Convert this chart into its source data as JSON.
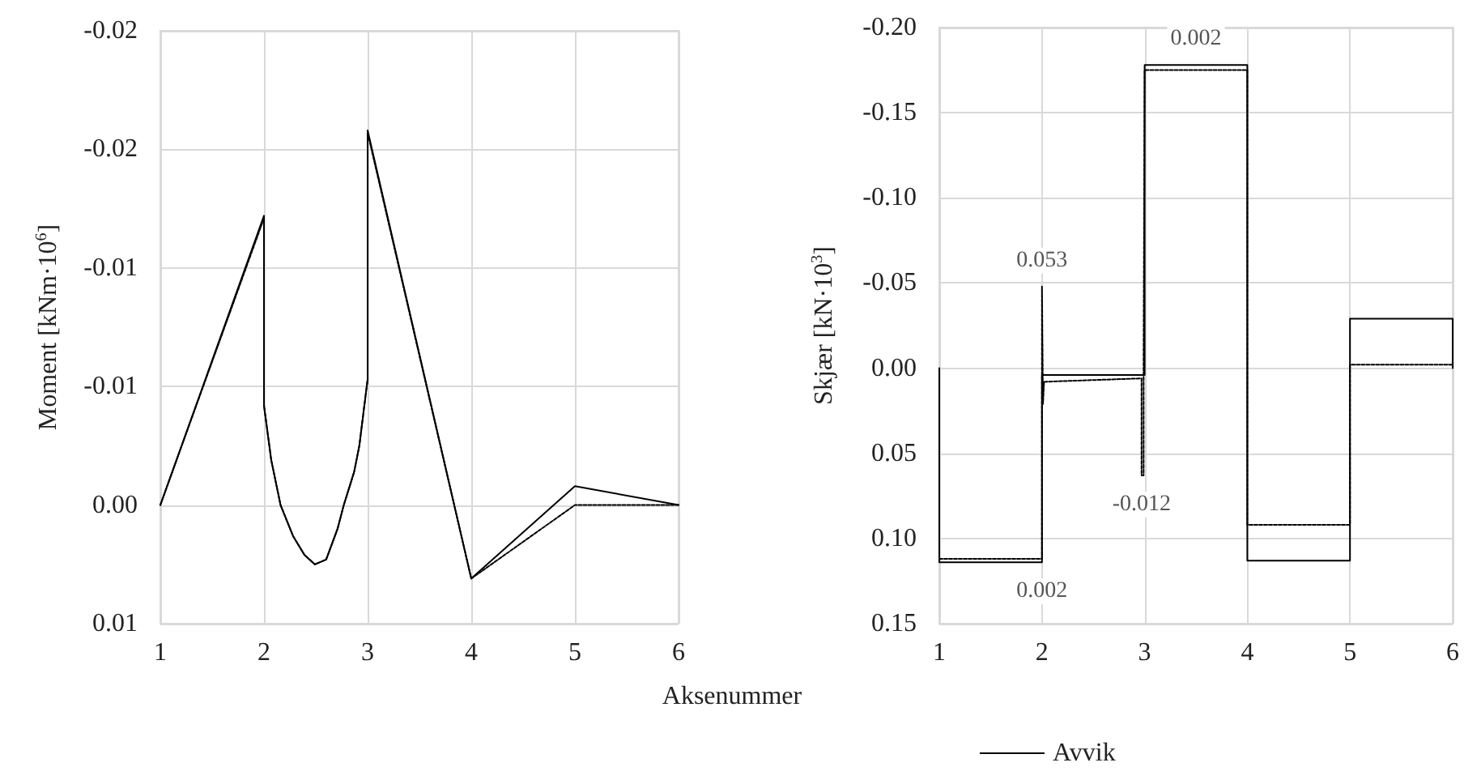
{
  "chart_data": [
    {
      "type": "line",
      "xlabel": "Aksenummer",
      "ylabel": "Moment [kNm·10$^{6}$]",
      "xlim": [
        1,
        6
      ],
      "xticks": [
        1,
        2,
        3,
        4,
        5,
        6
      ],
      "ylim": [
        0.005,
        -0.02
      ],
      "yticks": [
        {
          "value": 0.005,
          "label": "0.01"
        },
        {
          "value": 0,
          "label": "0.00"
        },
        {
          "value": -0.005,
          "label": "-0.01"
        },
        {
          "value": -0.01,
          "label": "-0.01"
        },
        {
          "value": -0.015,
          "label": "-0.02"
        },
        {
          "value": -0.02,
          "label": "-0.02"
        }
      ],
      "grid": true,
      "legend": false,
      "marker": "none",
      "series": [
        {
          "color": "#000000",
          "line_style": "solid",
          "x": [
            1,
            2,
            2,
            2.07,
            2.16,
            2.28,
            2.39,
            2.49,
            2.6,
            2.71,
            2.77,
            2.87,
            2.92,
            3,
            3,
            4,
            5,
            6
          ],
          "values": [
            0,
            -0.0122,
            -0.0042,
            -0.0019,
            0,
            0.0013,
            0.0021,
            0.0025,
            0.0023,
            0.001,
            0,
            -0.0014,
            -0.0025,
            -0.0053,
            -0.0158,
            0.0031,
            -0.0008,
            0
          ]
        },
        {
          "color": "#000000",
          "line_style": "dashed",
          "x": [
            1,
            2,
            2,
            2.07,
            2.16,
            2.28,
            2.39,
            2.49,
            2.6,
            2.71,
            2.77,
            2.87,
            2.92,
            3,
            3,
            4,
            5,
            6
          ],
          "values": [
            0,
            -0.0121,
            -0.0042,
            -0.0019,
            0,
            0.0013,
            0.0021,
            0.0025,
            0.0023,
            0.001,
            0,
            -0.0014,
            -0.0025,
            -0.0053,
            -0.0157,
            0.0031,
            0,
            0
          ]
        }
      ]
    },
    {
      "type": "line",
      "ylabel": "Skjær [kN·10$^{3}$]",
      "xlim": [
        1,
        6
      ],
      "xticks": [
        1,
        2,
        3,
        4,
        5,
        6
      ],
      "ylim": [
        0.15,
        -0.2
      ],
      "yticks": [
        {
          "value": 0.15,
          "label": "0.15"
        },
        {
          "value": 0.1,
          "label": "0.10"
        },
        {
          "value": 0.05,
          "label": "0.05"
        },
        {
          "value": 0,
          "label": "0.00"
        },
        {
          "value": -0.05,
          "label": "-0.05"
        },
        {
          "value": -0.1,
          "label": "-0.10"
        },
        {
          "value": -0.15,
          "label": "-0.15"
        },
        {
          "value": -0.2,
          "label": "-0.20"
        }
      ],
      "grid": true,
      "legend": "bottom",
      "marker": "none",
      "series": [
        {
          "color": "#000000",
          "line_style": "solid",
          "x": [
            1,
            1,
            2,
            2,
            3,
            3,
            4,
            4,
            5,
            5,
            6,
            6
          ],
          "values": [
            0,
            0.114,
            0.114,
            0.004,
            0.004,
            -0.178,
            -0.178,
            0.113,
            0.113,
            -0.029,
            -0.029,
            0
          ]
        },
        {
          "color": "#000000",
          "line_style": "dashed",
          "x": [
            1,
            2,
            2,
            2.01,
            2.02,
            2.49,
            2.97,
            2.97,
            2.99,
            2.99,
            3,
            4,
            4,
            5,
            5,
            6
          ],
          "values": [
            0.112,
            0.112,
            -0.048,
            0.021,
            0.008,
            0.007,
            0.006,
            0.063,
            0.063,
            -0.009,
            -0.175,
            -0.175,
            0.092,
            0.092,
            -0.002,
            -0.002
          ]
        },
        {
          "name": "Avvik",
          "color": "#000000",
          "line_style": "solid",
          "values": [
            null
          ]
        }
      ],
      "annotations": [
        {
          "text": "0.053",
          "x": 2,
          "y": -0.048
        },
        {
          "text": "0.002",
          "x": 2,
          "y": 0.114
        },
        {
          "text": "-0.012",
          "x": 2.97,
          "y": 0.063
        },
        {
          "text": "0.002",
          "x": 3.5,
          "y": -0.178
        }
      ]
    }
  ]
}
